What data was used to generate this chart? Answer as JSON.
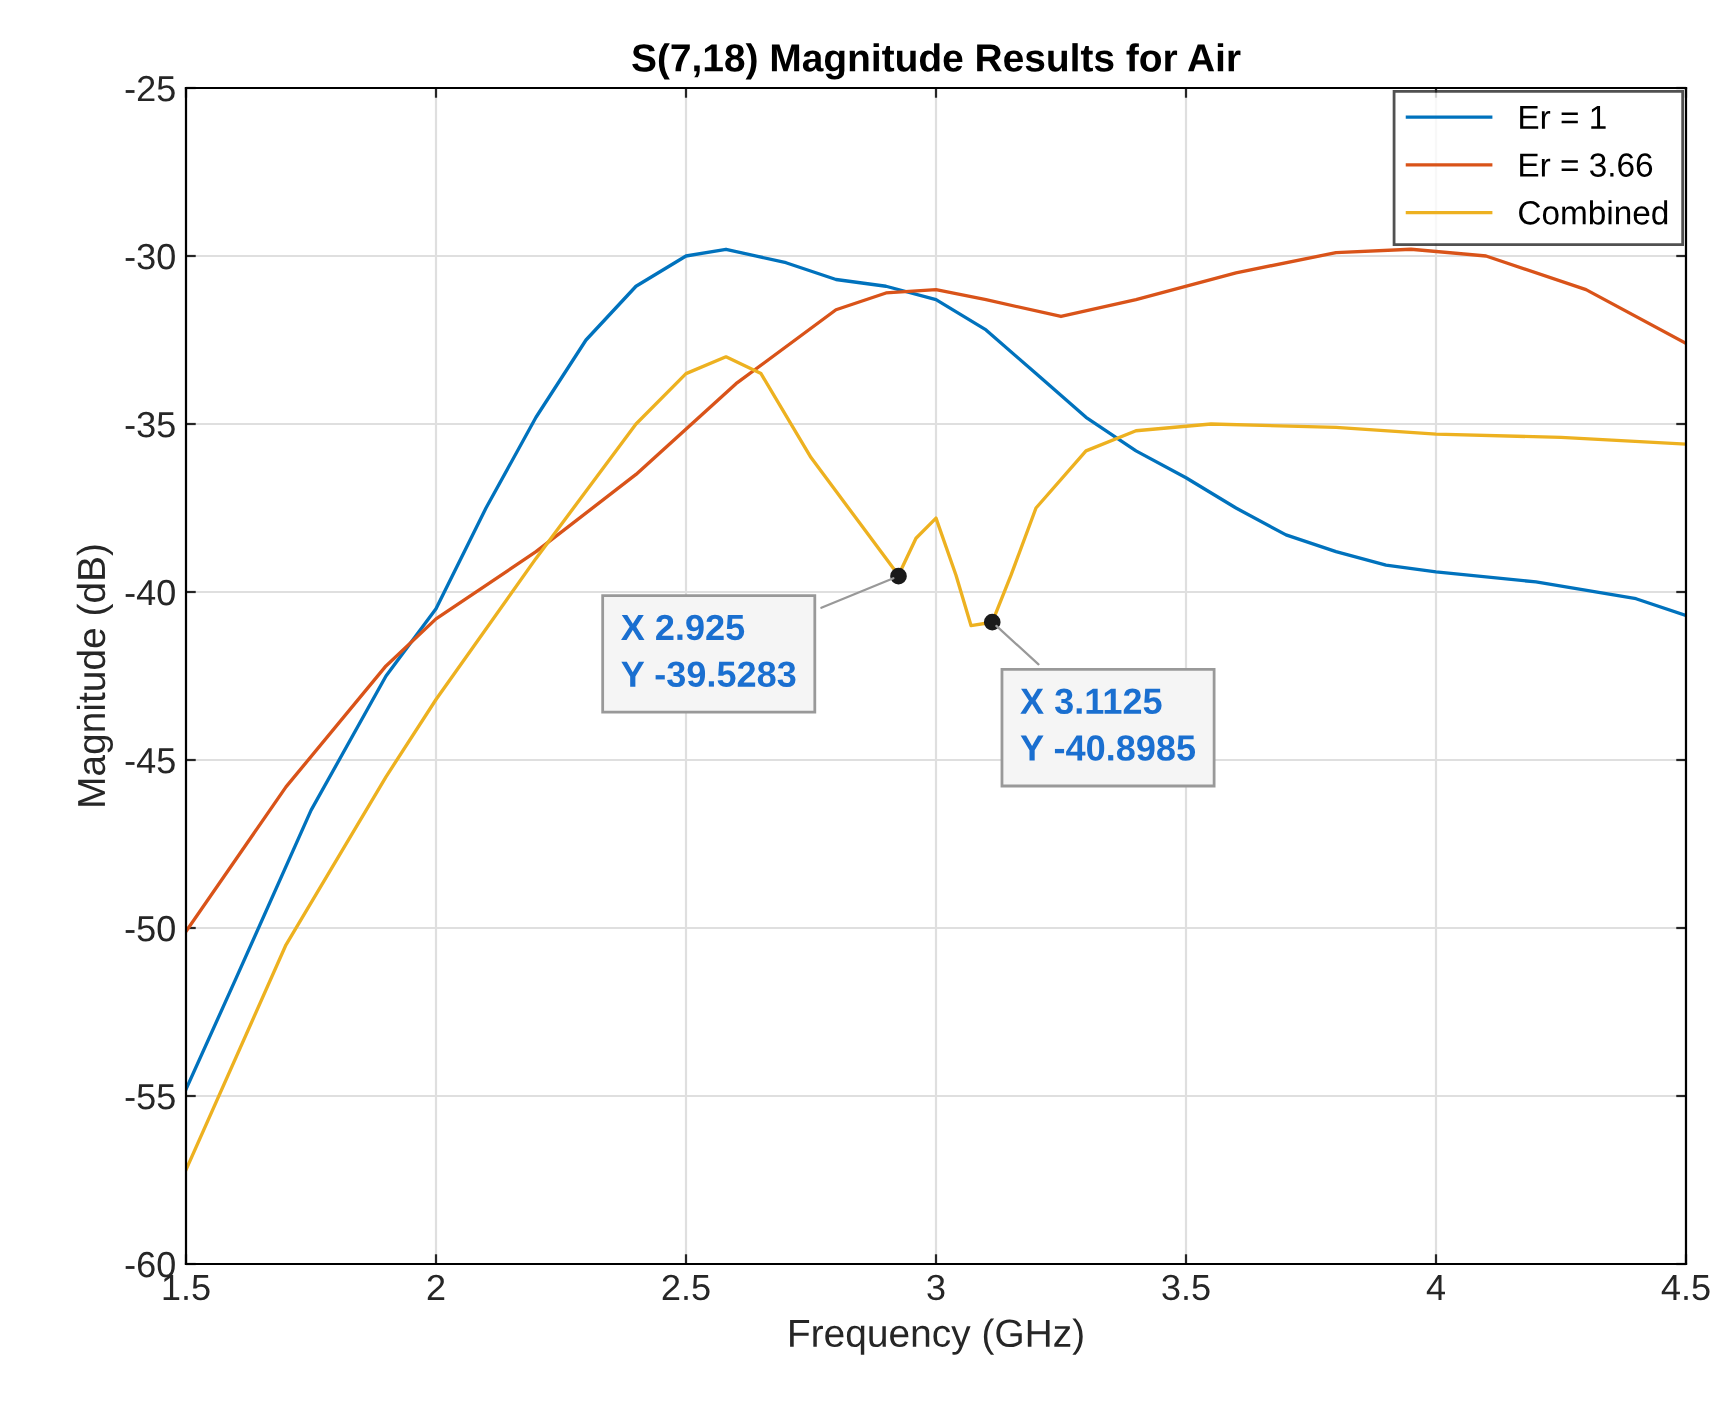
{
  "chart_data": {
    "type": "line",
    "title": "S(7,18) Magnitude Results for Air",
    "xlabel": "Frequency (GHz)",
    "ylabel": "Magnitude (dB)",
    "xlim": [
      1.5,
      4.5
    ],
    "ylim": [
      -60,
      -25
    ],
    "xticks": [
      1.5,
      2,
      2.5,
      3,
      3.5,
      4,
      4.5
    ],
    "yticks": [
      -60,
      -55,
      -50,
      -45,
      -40,
      -35,
      -30,
      -25
    ],
    "grid": true,
    "legend": "top right",
    "marker": "none",
    "line_style": "solid",
    "series": [
      {
        "name": "Er = 1",
        "color": "#0072bd",
        "x": [
          1.5,
          1.6,
          1.75,
          1.9,
          2.0,
          2.1,
          2.2,
          2.3,
          2.4,
          2.5,
          2.58,
          2.7,
          2.8,
          2.9,
          3.0,
          3.1,
          3.2,
          3.3,
          3.4,
          3.5,
          3.6,
          3.7,
          3.8,
          3.9,
          4.0,
          4.2,
          4.4,
          4.5
        ],
        "values": [
          -54.8,
          -51.5,
          -46.5,
          -42.5,
          -40.5,
          -37.5,
          -34.8,
          -32.5,
          -30.9,
          -30.0,
          -29.8,
          -30.2,
          -30.7,
          -30.9,
          -31.3,
          -32.2,
          -33.5,
          -34.8,
          -35.8,
          -36.6,
          -37.5,
          -38.3,
          -38.8,
          -39.2,
          -39.4,
          -39.7,
          -40.2,
          -40.7
        ]
      },
      {
        "name": "Er = 3.66",
        "color": "#d95319",
        "x": [
          1.5,
          1.7,
          1.9,
          2.0,
          2.2,
          2.4,
          2.6,
          2.8,
          2.9,
          3.0,
          3.1,
          3.25,
          3.4,
          3.6,
          3.8,
          3.95,
          4.1,
          4.3,
          4.5
        ],
        "values": [
          -50.1,
          -45.8,
          -42.2,
          -40.8,
          -38.8,
          -36.5,
          -33.8,
          -31.6,
          -31.1,
          -31.0,
          -31.3,
          -31.8,
          -31.3,
          -30.5,
          -29.9,
          -29.8,
          -30.0,
          -31.0,
          -32.6
        ]
      },
      {
        "name": "Combined",
        "color": "#edb120",
        "x": [
          1.5,
          1.7,
          1.9,
          2.0,
          2.2,
          2.4,
          2.5,
          2.58,
          2.65,
          2.75,
          2.85,
          2.925,
          2.96,
          3.0,
          3.04,
          3.07,
          3.1125,
          3.15,
          3.2,
          3.3,
          3.4,
          3.55,
          3.8,
          4.0,
          4.25,
          4.5
        ],
        "values": [
          -57.2,
          -50.5,
          -45.5,
          -43.2,
          -39.0,
          -35.0,
          -33.5,
          -33.0,
          -33.5,
          -36.0,
          -38.0,
          -39.5,
          -38.4,
          -37.8,
          -39.5,
          -41.0,
          -40.9,
          -39.5,
          -37.5,
          -35.8,
          -35.2,
          -35.0,
          -35.1,
          -35.3,
          -35.4,
          -35.6
        ]
      }
    ],
    "annotations": [
      {
        "text": "X 2.925\nY -39.5283",
        "x": 2.925,
        "y": -39.5283
      },
      {
        "text": "X 3.1125\nY -40.8985",
        "x": 3.1125,
        "y": -40.8985
      }
    ]
  }
}
